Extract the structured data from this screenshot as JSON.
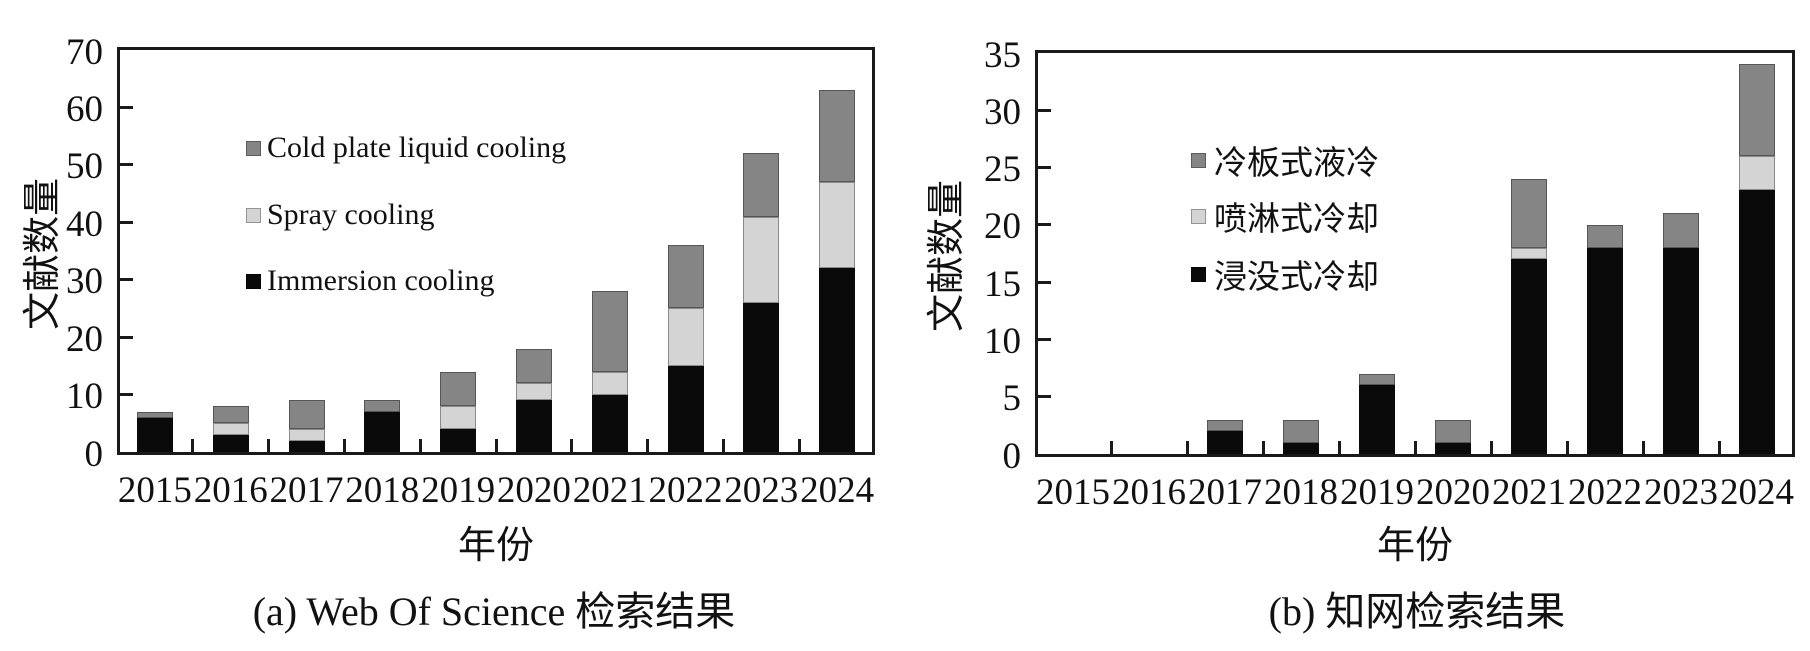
{
  "colors": {
    "background": "#ffffff",
    "axis": "#1a1a1a",
    "text": "#111111",
    "cold_plate_gray": "#858585",
    "spray_light_gray": "#d4d4d4",
    "immersion_black": "#0a0a0a"
  },
  "chart_data": [
    {
      "type": "bar",
      "stacked": true,
      "title": "(a) Web Of Science 检索结果",
      "xlabel": "年份",
      "ylabel": "文献数量",
      "categories": [
        "2015",
        "2016",
        "2017",
        "2018",
        "2019",
        "2020",
        "2021",
        "2022",
        "2023",
        "2024"
      ],
      "series": [
        {
          "name": "Cold plate liquid cooling",
          "color": "#858585",
          "values": [
            1,
            3,
            5,
            2,
            6,
            6,
            14,
            11,
            11,
            16
          ]
        },
        {
          "name": "Spray cooling",
          "color": "#d4d4d4",
          "values": [
            0,
            2,
            2,
            0,
            4,
            3,
            4,
            10,
            15,
            15
          ]
        },
        {
          "name": "Immersion cooling",
          "color": "#0a0a0a",
          "values": [
            6,
            3,
            2,
            7,
            4,
            9,
            10,
            15,
            26,
            32
          ]
        }
      ],
      "totals": [
        7,
        8,
        9,
        9,
        14,
        18,
        28,
        36,
        52,
        63
      ],
      "ylim": [
        0,
        70
      ],
      "yticks": [
        0,
        10,
        20,
        30,
        40,
        50,
        60,
        70
      ],
      "grid": false,
      "legend_position": "inside-upper-left"
    },
    {
      "type": "bar",
      "stacked": true,
      "title": "(b) 知网检索结果",
      "xlabel": "年份",
      "ylabel": "文献数量",
      "categories": [
        "2015",
        "2016",
        "2017",
        "2018",
        "2019",
        "2020",
        "2021",
        "2022",
        "2023",
        "2024"
      ],
      "series": [
        {
          "name": "冷板式液冷",
          "color": "#858585",
          "values": [
            0,
            0,
            1,
            2,
            1,
            2,
            6,
            2,
            3,
            8
          ]
        },
        {
          "name": "喷淋式冷却",
          "color": "#d4d4d4",
          "values": [
            0,
            0,
            0,
            0,
            0,
            0,
            1,
            0,
            0,
            3
          ]
        },
        {
          "name": "浸没式冷却",
          "color": "#0a0a0a",
          "values": [
            0,
            0,
            2,
            1,
            6,
            1,
            17,
            18,
            18,
            23
          ]
        }
      ],
      "totals": [
        0,
        0,
        3,
        3,
        7,
        3,
        24,
        20,
        21,
        34
      ],
      "ylim": [
        0,
        35
      ],
      "yticks": [
        0,
        5,
        10,
        15,
        20,
        25,
        30,
        35
      ],
      "grid": false,
      "legend_position": "inside-upper-left"
    }
  ]
}
